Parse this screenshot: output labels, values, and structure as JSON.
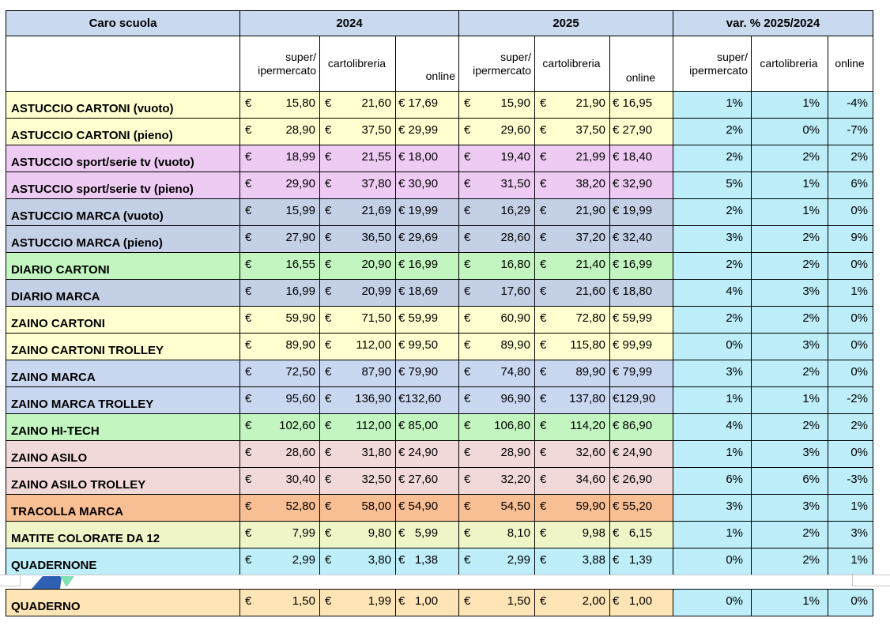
{
  "header": {
    "title": "Caro scuola",
    "groups": [
      "2024",
      "2025",
      "var. % 2025/2024"
    ],
    "sub": {
      "super_line1": "super/",
      "super_line2": "ipermercato",
      "cartolibreria": "cartolibreria",
      "online": "online"
    }
  },
  "rows": [
    {
      "label": "ASTUCCIO CARTONI (vuoto)",
      "color": "#ffffd0",
      "v2024": [
        "15,80",
        "21,60",
        "€ 17,69"
      ],
      "v2025": [
        "15,90",
        "21,90",
        "€ 16,95"
      ],
      "var": [
        "1%",
        "1%",
        "-4%"
      ]
    },
    {
      "label": "ASTUCCIO CARTONI (pieno)",
      "color": "#ffffd0",
      "v2024": [
        "28,90",
        "37,50",
        "€ 29,99"
      ],
      "v2025": [
        "29,60",
        "37,50",
        "€ 27,90"
      ],
      "var": [
        "2%",
        "0%",
        "-7%"
      ]
    },
    {
      "label": "ASTUCCIO sport/serie tv (vuoto)",
      "color": "#eecbf3",
      "v2024": [
        "18,99",
        "21,55",
        "€ 18,00"
      ],
      "v2025": [
        "19,40",
        "21,99",
        "€ 18,40"
      ],
      "var": [
        "2%",
        "2%",
        "2%"
      ]
    },
    {
      "label": "ASTUCCIO sport/serie tv (pieno)",
      "color": "#eecbf3",
      "v2024": [
        "29,90",
        "37,80",
        "€ 30,90"
      ],
      "v2025": [
        "31,50",
        "38,20",
        "€ 32,90"
      ],
      "var": [
        "5%",
        "1%",
        "6%"
      ]
    },
    {
      "label": "ASTUCCIO MARCA (vuoto)",
      "color": "#c3d0e6",
      "v2024": [
        "15,99",
        "21,69",
        "€ 19,99"
      ],
      "v2025": [
        "16,29",
        "21,90",
        "€ 19,99"
      ],
      "var": [
        "2%",
        "1%",
        "0%"
      ]
    },
    {
      "label": "ASTUCCIO  MARCA (pieno)",
      "color": "#c3d0e6",
      "v2024": [
        "27,90",
        "36,50",
        "€ 29,69"
      ],
      "v2025": [
        "28,60",
        "37,20",
        "€ 32,40"
      ],
      "var": [
        "3%",
        "2%",
        "9%"
      ]
    },
    {
      "label": "DIARIO CARTONI",
      "color": "#c2f5bf",
      "v2024": [
        "16,55",
        "20,90",
        "€ 16,99"
      ],
      "v2025": [
        "16,80",
        "21,40",
        "€ 16,99"
      ],
      "var": [
        "2%",
        "2%",
        "0%"
      ]
    },
    {
      "label": "DIARIO MARCA",
      "color": "#c3d0e6",
      "v2024": [
        "16,99",
        "20,99",
        "€ 18,69"
      ],
      "v2025": [
        "17,60",
        "21,60",
        "€ 18,80"
      ],
      "var": [
        "4%",
        "3%",
        "1%"
      ]
    },
    {
      "label": "ZAINO CARTONI",
      "color": "#ffffd0",
      "v2024": [
        "59,90",
        "71,50",
        "€ 59,99"
      ],
      "v2025": [
        "60,90",
        "72,80",
        "€ 59,99"
      ],
      "var": [
        "2%",
        "2%",
        "0%"
      ]
    },
    {
      "label": "ZAINO CARTONI TROLLEY",
      "color": "#ffffd0",
      "v2024": [
        "89,90",
        "112,00",
        "€ 99,50"
      ],
      "v2025": [
        "89,90",
        "115,80",
        "€ 99,99"
      ],
      "var": [
        "0%",
        "3%",
        "0%"
      ]
    },
    {
      "label": "ZAINO MARCA",
      "color": "#c9d7f0",
      "v2024": [
        "72,50",
        "87,90",
        "€ 79,90"
      ],
      "v2025": [
        "74,80",
        "89,90",
        "€ 79,99"
      ],
      "var": [
        "3%",
        "2%",
        "0%"
      ]
    },
    {
      "label": "ZAINO MARCA TROLLEY",
      "color": "#c9d7f0",
      "v2024": [
        "95,60",
        "136,90",
        "€132,60"
      ],
      "v2025": [
        "96,90",
        "137,80",
        "€129,90"
      ],
      "var": [
        "1%",
        "1%",
        "-2%"
      ]
    },
    {
      "label": "ZAINO HI-TECH",
      "color": "#c2f5bf",
      "v2024": [
        "102,60",
        "112,00",
        "€ 85,00"
      ],
      "v2025": [
        "106,80",
        "114,20",
        "€ 86,90"
      ],
      "var": [
        "4%",
        "2%",
        "2%"
      ]
    },
    {
      "label": "ZAINO ASILO",
      "color": "#f2d9d9",
      "v2024": [
        "28,60",
        "31,80",
        "€ 24,90"
      ],
      "v2025": [
        "28,90",
        "32,60",
        "€ 24,90"
      ],
      "var": [
        "1%",
        "3%",
        "0%"
      ]
    },
    {
      "label": "ZAINO ASILO TROLLEY",
      "color": "#f2d9d9",
      "v2024": [
        "30,40",
        "32,50",
        "€ 27,60"
      ],
      "v2025": [
        "32,20",
        "34,60",
        "€ 26,90"
      ],
      "var": [
        "6%",
        "6%",
        "-3%"
      ]
    },
    {
      "label": "TRACOLLA MARCA",
      "color": "#f9bf94",
      "v2024": [
        "52,80",
        "58,00",
        "€ 54,90"
      ],
      "v2025": [
        "54,50",
        "59,90",
        "€ 55,20"
      ],
      "var": [
        "3%",
        "3%",
        "1%"
      ]
    },
    {
      "label": "MATITE COLORATE DA 12",
      "color": "#f0f5c8",
      "v2024": [
        "7,99",
        "9,80",
        "€   5,99"
      ],
      "v2025": [
        "8,10",
        "9,98",
        "€   6,15"
      ],
      "var": [
        "1%",
        "2%",
        "3%"
      ]
    },
    {
      "label": "QUADERNONE",
      "color": "#bdeefa",
      "v2024": [
        "2,99",
        "3,80",
        "€   1,38"
      ],
      "v2025": [
        "2,99",
        "3,88",
        "€   1,39"
      ],
      "var": [
        "0%",
        "2%",
        "1%"
      ]
    },
    {
      "label": "QUADERNO",
      "color": "#ffe5b6",
      "v2024": [
        "1,50",
        "1,99",
        "€   1,00"
      ],
      "v2025": [
        "1,50",
        "2,00",
        "€   1,00"
      ],
      "var": [
        "0%",
        "1%",
        "0%"
      ]
    }
  ],
  "currency": "€",
  "colors": {
    "header_fill": "#c9d9ef",
    "variation_fill": "#bdeefa",
    "grid": "#000000"
  }
}
